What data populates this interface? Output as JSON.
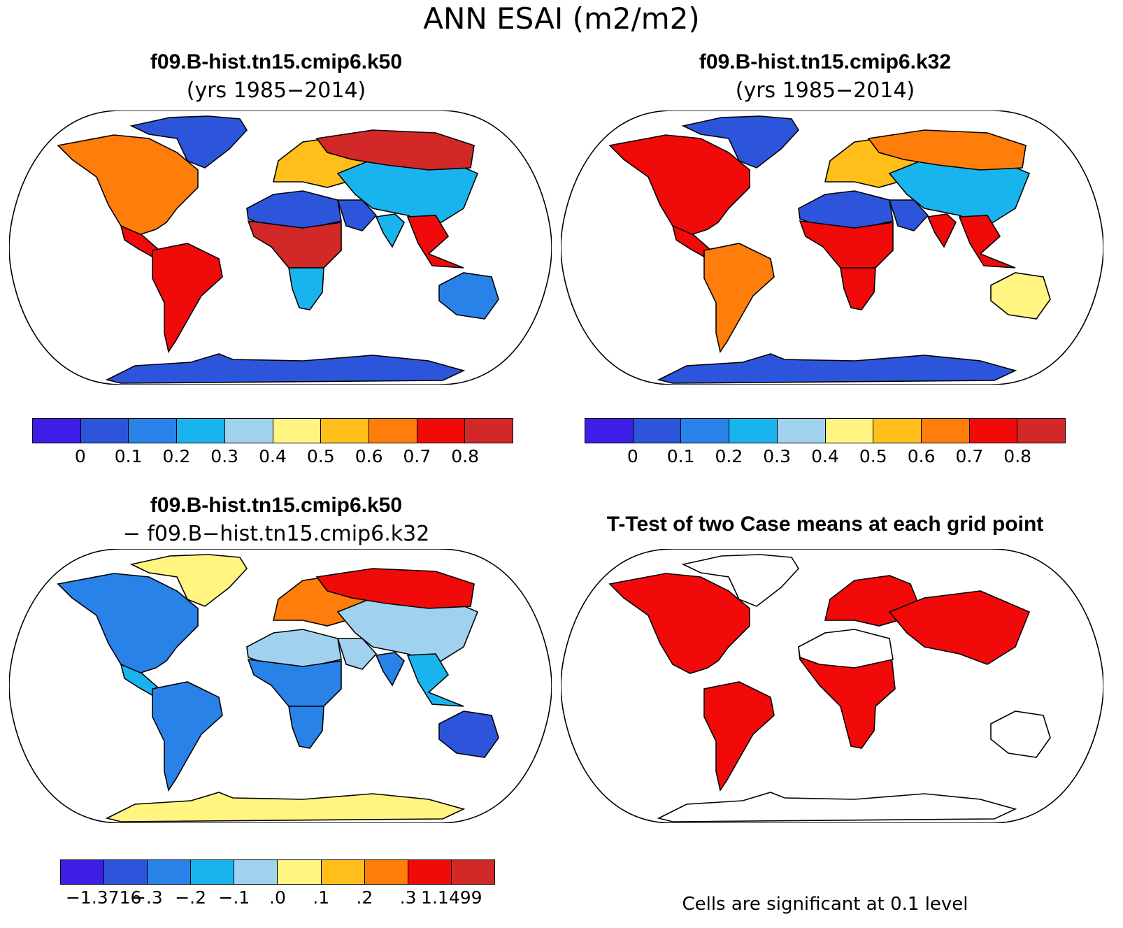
{
  "figure": {
    "title": "ANN ESAI (m2/m2)",
    "note": "Cells are significant at 0.1 level"
  },
  "palette": {
    "levels": [
      "#3c1ee6",
      "#2d55dc",
      "#2882e8",
      "#19b4ee",
      "#a0d2f0",
      "#fff580",
      "#ffbe19",
      "#ff7d0a",
      "#f00a0a",
      "#d22828"
    ],
    "ocean": "#ffffff",
    "significant": "#f20a0a",
    "coast": "#000000"
  },
  "chart_data": [
    {
      "type": "heatmap",
      "panel": "top-left",
      "title": "f09.B-hist.tn15.cmip6.k50",
      "subtitle": "(yrs 1985−2014)",
      "projection": "Robinson",
      "colorbar_ticks": [
        "0",
        "0.1",
        "0.2",
        "0.3",
        "0.4",
        "0.5",
        "0.6",
        "0.7",
        "0.8"
      ],
      "contour_levels": [
        0,
        0.1,
        0.2,
        0.3,
        0.4,
        0.5,
        0.6,
        0.7,
        0.8
      ],
      "regions": [
        {
          "name": "Antarctica",
          "level": 1
        },
        {
          "name": "Greenland",
          "level": 1
        },
        {
          "name": "North America",
          "level": 7
        },
        {
          "name": "Central America",
          "level": 8
        },
        {
          "name": "South America",
          "level": 8
        },
        {
          "name": "Europe",
          "level": 6
        },
        {
          "name": "Asia",
          "level": 3
        },
        {
          "name": "Siberia",
          "level": 9
        },
        {
          "name": "Sahara",
          "level": 1
        },
        {
          "name": "Arabia",
          "level": 1
        },
        {
          "name": "Central Africa",
          "level": 9
        },
        {
          "name": "Southern Africa",
          "level": 3
        },
        {
          "name": "India",
          "level": 3
        },
        {
          "name": "SE Asia",
          "level": 8
        },
        {
          "name": "Australia",
          "level": 2
        }
      ]
    },
    {
      "type": "heatmap",
      "panel": "top-right",
      "title": "f09.B-hist.tn15.cmip6.k32",
      "subtitle": "(yrs 1985−2014)",
      "projection": "Robinson",
      "colorbar_ticks": [
        "0",
        "0.1",
        "0.2",
        "0.3",
        "0.4",
        "0.5",
        "0.6",
        "0.7",
        "0.8"
      ],
      "contour_levels": [
        0,
        0.1,
        0.2,
        0.3,
        0.4,
        0.5,
        0.6,
        0.7,
        0.8
      ],
      "regions": [
        {
          "name": "Antarctica",
          "level": 1
        },
        {
          "name": "Greenland",
          "level": 1
        },
        {
          "name": "North America",
          "level": 8
        },
        {
          "name": "Central America",
          "level": 8
        },
        {
          "name": "South America",
          "level": 7
        },
        {
          "name": "Europe",
          "level": 6
        },
        {
          "name": "Asia",
          "level": 3
        },
        {
          "name": "Siberia",
          "level": 7
        },
        {
          "name": "Sahara",
          "level": 1
        },
        {
          "name": "Arabia",
          "level": 1
        },
        {
          "name": "Central Africa",
          "level": 8
        },
        {
          "name": "Southern Africa",
          "level": 8
        },
        {
          "name": "India",
          "level": 8
        },
        {
          "name": "SE Asia",
          "level": 8
        },
        {
          "name": "Australia",
          "level": 5
        }
      ]
    },
    {
      "type": "heatmap",
      "panel": "bottom-left",
      "title": "f09.B-hist.tn15.cmip6.k50",
      "subtitle": "− f09.B−hist.tn15.cmip6.k32",
      "projection": "Robinson",
      "colorbar_ticks": [
        "−1.3716",
        "−.3",
        "−.2",
        "−.1",
        ".0",
        ".1",
        ".2",
        ".3",
        "1.1499"
      ],
      "contour_levels": [
        -1.3716,
        -0.3,
        -0.2,
        -0.1,
        0.0,
        0.1,
        0.2,
        0.3,
        1.1499
      ],
      "regions": [
        {
          "name": "Antarctica",
          "level": 5
        },
        {
          "name": "Greenland",
          "level": 5
        },
        {
          "name": "North America",
          "level": 2
        },
        {
          "name": "Central America",
          "level": 3
        },
        {
          "name": "South America",
          "level": 2
        },
        {
          "name": "Europe",
          "level": 7
        },
        {
          "name": "Asia",
          "level": 4
        },
        {
          "name": "Siberia",
          "level": 8
        },
        {
          "name": "Sahara",
          "level": 4
        },
        {
          "name": "Arabia",
          "level": 4
        },
        {
          "name": "Central Africa",
          "level": 2
        },
        {
          "name": "Southern Africa",
          "level": 2
        },
        {
          "name": "India",
          "level": 2
        },
        {
          "name": "SE Asia",
          "level": 3
        },
        {
          "name": "Australia",
          "level": 1
        }
      ]
    },
    {
      "type": "heatmap",
      "panel": "bottom-right",
      "title": "T-Test of two Case means at each grid point",
      "projection": "Robinson",
      "regions": [
        {
          "name": "North America",
          "significant": true
        },
        {
          "name": "South America",
          "significant": true
        },
        {
          "name": "Europe",
          "significant": true
        },
        {
          "name": "Asia",
          "significant": true
        },
        {
          "name": "Africa",
          "significant": true
        },
        {
          "name": "Sahara",
          "significant": false
        },
        {
          "name": "Australia",
          "significant": false
        },
        {
          "name": "Antarctica",
          "significant": false
        },
        {
          "name": "Greenland",
          "significant": false
        }
      ]
    }
  ]
}
